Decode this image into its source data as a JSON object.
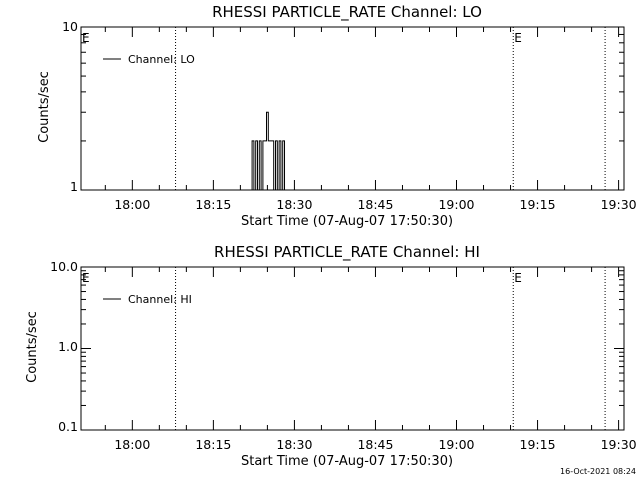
{
  "chart_data": [
    {
      "type": "line",
      "title": "RHESSI PARTICLE_RATE Channel: LO",
      "xlabel": "Start Time (07-Aug-07 17:50:30)",
      "ylabel": "Counts/sec",
      "yscale": "log",
      "ylim": [
        1,
        10
      ],
      "y_ticks": [
        "1",
        "10"
      ],
      "x_ticks": [
        "18:00",
        "18:15",
        "18:30",
        "18:45",
        "19:00",
        "19:15",
        "19:30"
      ],
      "xlim": [
        "17:50:30",
        "19:31:00"
      ],
      "legend": {
        "label": "Channel: LO",
        "placement": "top-left"
      },
      "vlines": [
        "18:08:00",
        "19:10:30",
        "19:27:30"
      ],
      "event_markers": [
        {
          "label": "E",
          "at": "17:50:30"
        },
        {
          "label": "E",
          "at": "19:10:30"
        }
      ],
      "series": [
        {
          "name": "Channel: LO",
          "x": [
            "18:22:00",
            "18:22:20",
            "18:22:40",
            "18:23:00",
            "18:23:20",
            "18:23:40",
            "18:24:00",
            "18:24:20",
            "18:24:40",
            "18:25:00",
            "18:25:20",
            "18:25:40",
            "18:26:00",
            "18:26:20",
            "18:26:40",
            "18:27:00",
            "18:27:20",
            "18:27:40",
            "18:28:00",
            "18:28:20",
            "18:28:40"
          ],
          "y": [
            1,
            2,
            1,
            2,
            1,
            2,
            1,
            2,
            2,
            3,
            2,
            2,
            2,
            1,
            2,
            1,
            2,
            1,
            2,
            1,
            1
          ]
        }
      ]
    },
    {
      "type": "line",
      "title": "RHESSI PARTICLE_RATE Channel: HI",
      "xlabel": "Start Time (07-Aug-07 17:50:30)",
      "ylabel": "Counts/sec",
      "yscale": "log",
      "ylim": [
        0.1,
        10
      ],
      "y_ticks": [
        "0.1",
        "1.0",
        "10.0"
      ],
      "x_ticks": [
        "18:00",
        "18:15",
        "18:30",
        "18:45",
        "19:00",
        "19:15",
        "19:30"
      ],
      "xlim": [
        "17:50:30",
        "19:31:00"
      ],
      "legend": {
        "label": "Channel: HI",
        "placement": "top-left"
      },
      "vlines": [
        "18:08:00",
        "19:10:30",
        "19:27:30"
      ],
      "event_markers": [
        {
          "label": "E",
          "at": "17:50:30"
        },
        {
          "label": "E",
          "at": "19:10:30"
        }
      ],
      "series": [
        {
          "name": "Channel: HI",
          "x": [],
          "y": []
        }
      ]
    }
  ],
  "footer": {
    "timestamp": "16-Oct-2021 08:24"
  }
}
